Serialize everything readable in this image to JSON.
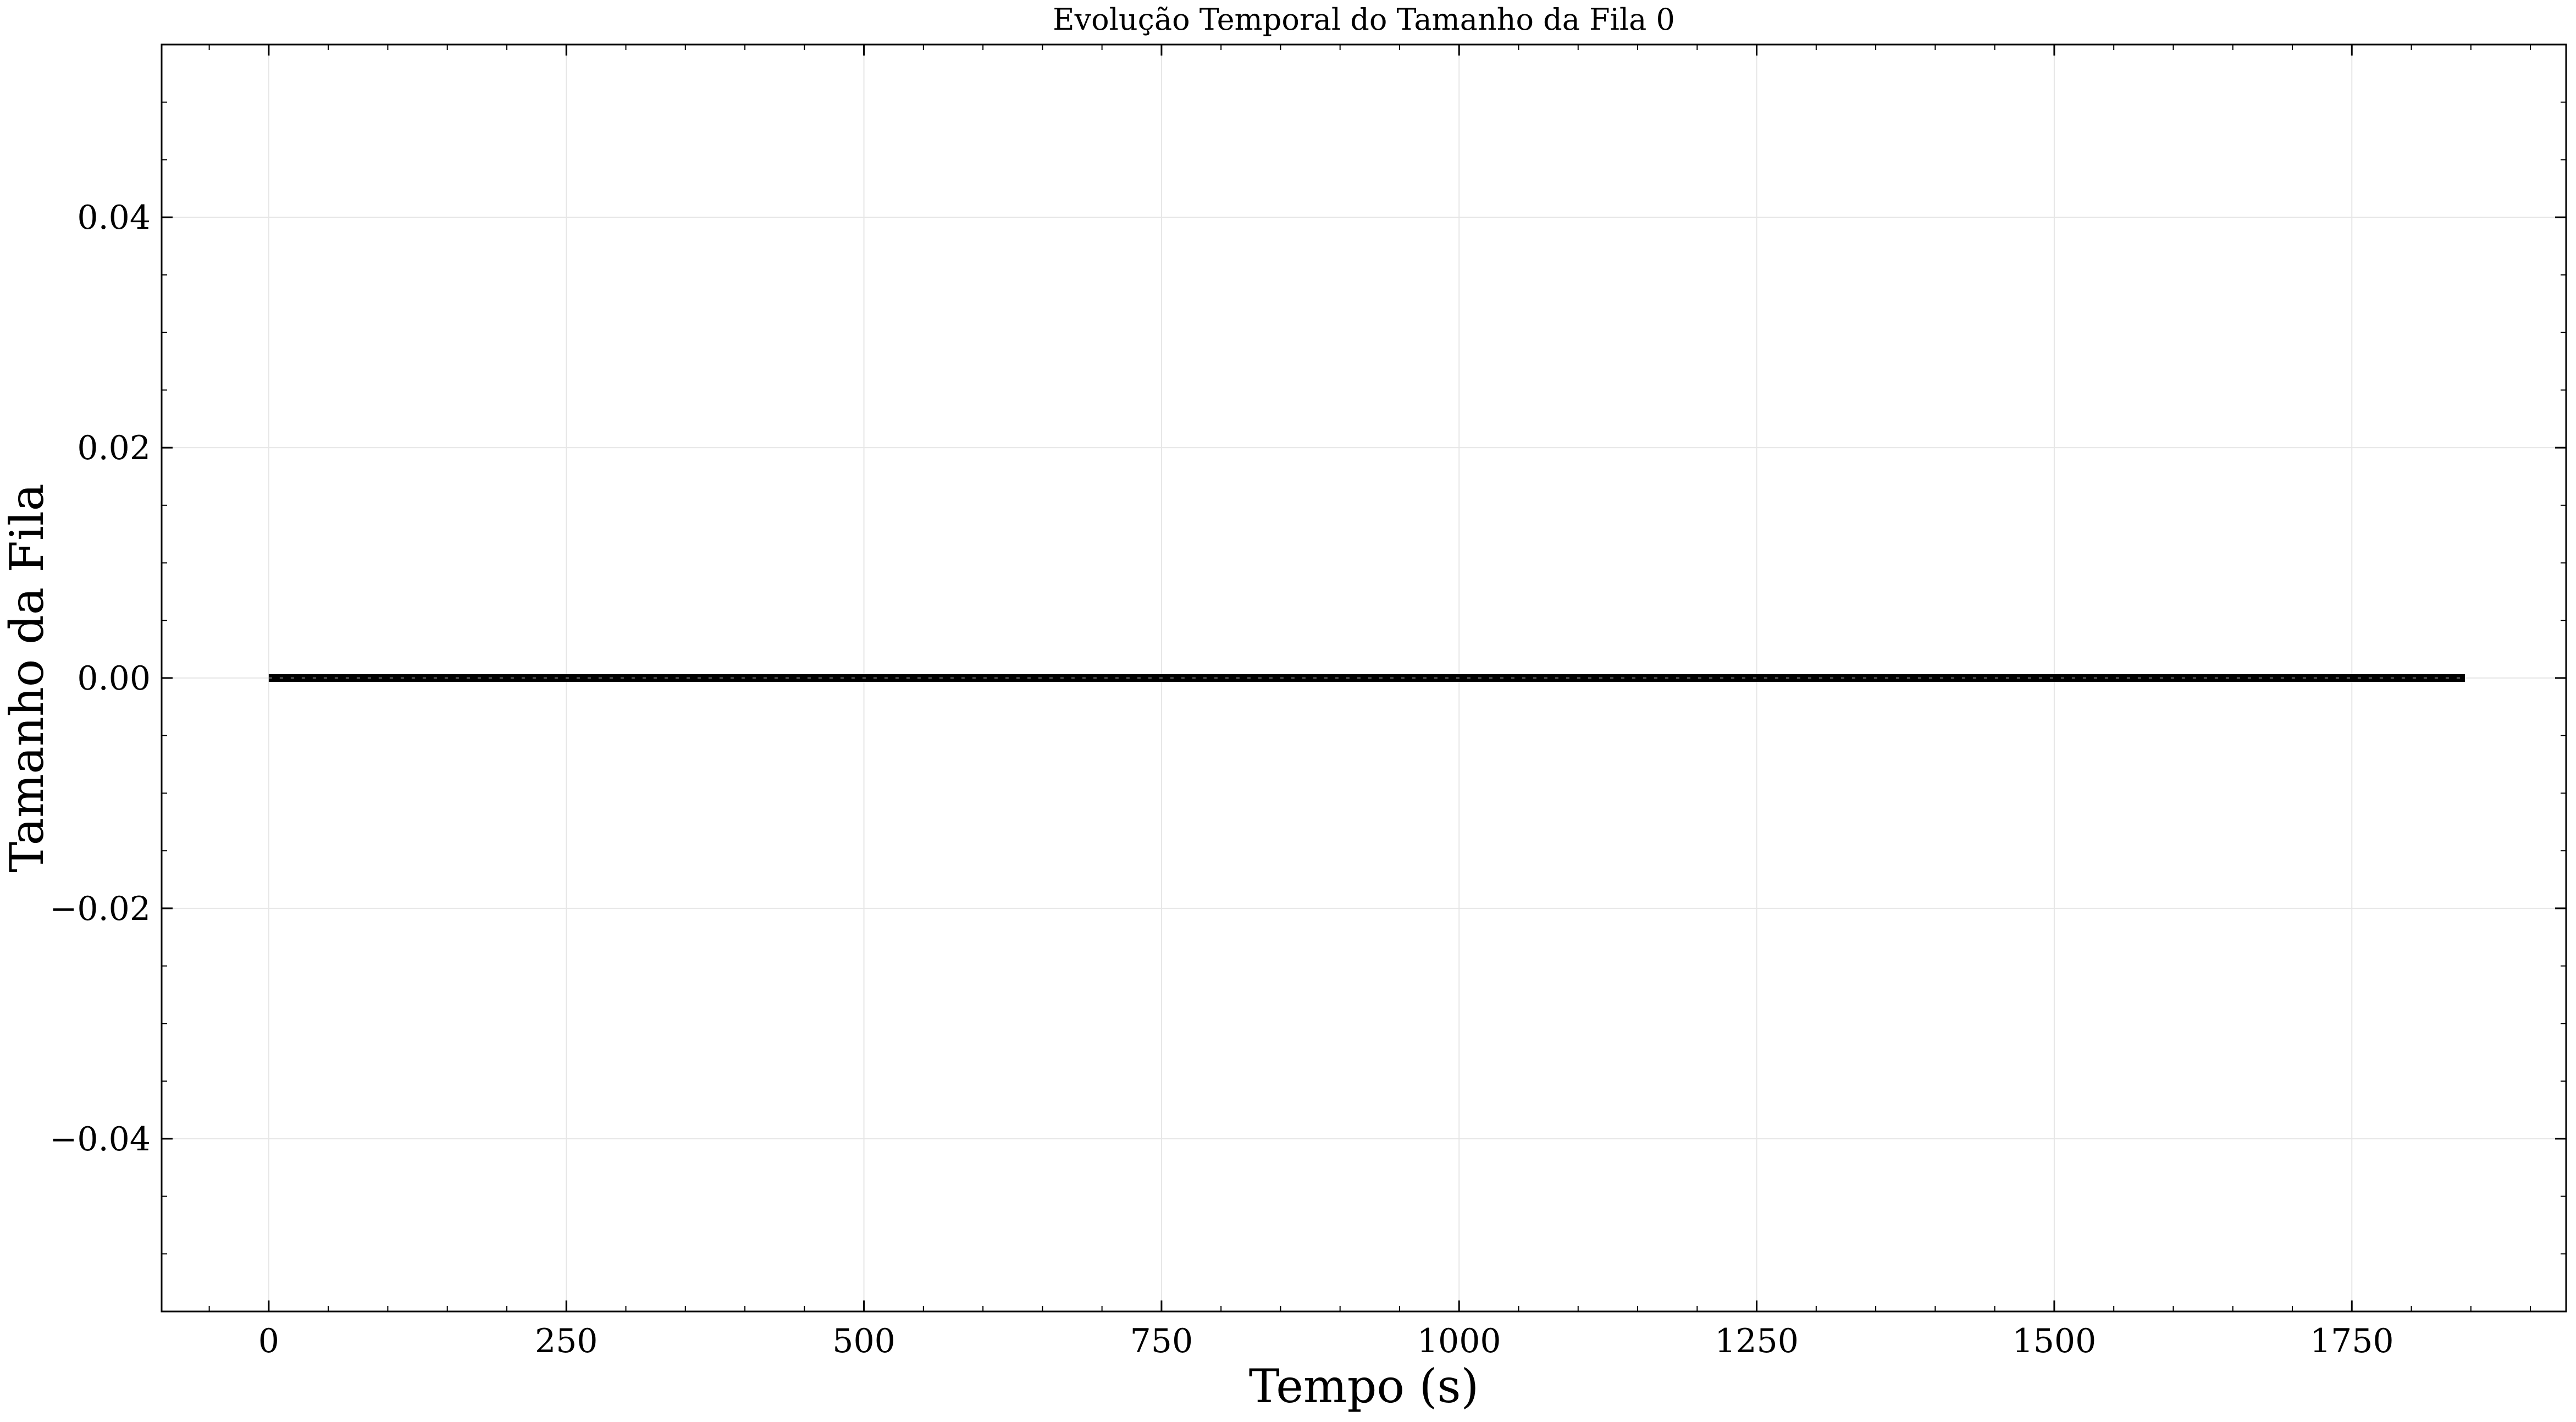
{
  "chart_data": {
    "type": "line",
    "title": "Evolução Temporal do Tamanho da Fila 0",
    "xlabel": "Tempo (s)",
    "ylabel": "Tamanho da Fila",
    "xlim": [
      -90,
      1930
    ],
    "ylim": [
      -0.055,
      0.055
    ],
    "x_ticks": [
      0,
      250,
      500,
      750,
      1000,
      1250,
      1500,
      1750
    ],
    "x_tick_labels": [
      "0",
      "250",
      "500",
      "750",
      "1000",
      "1250",
      "1500",
      "1750"
    ],
    "y_ticks": [
      0.04,
      0.02,
      0.0,
      -0.02,
      -0.04
    ],
    "y_tick_labels": [
      "0.04",
      "0.02",
      "0.00",
      "−0.02",
      "−0.04"
    ],
    "grid": true,
    "series": [
      {
        "color": "#000000",
        "x": [
          0,
          1845
        ],
        "y": [
          0,
          0
        ]
      }
    ]
  }
}
